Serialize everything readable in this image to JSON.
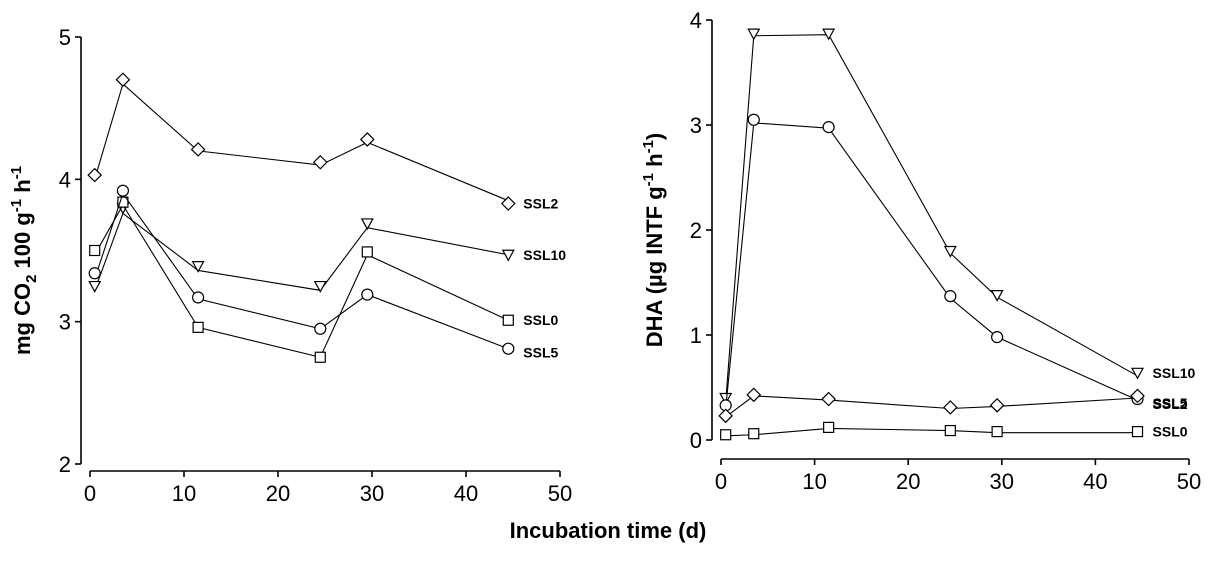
{
  "shared_xlabel": "Incubation time (d)",
  "chart_data": [
    {
      "type": "line",
      "title": "",
      "xlabel": "",
      "ylabel_parts": {
        "pre": "mg CO",
        "sub": "2",
        "mid": " 100 g",
        "sup1": "-1",
        "mid2": " h",
        "sup2": "-1"
      },
      "xlim": [
        0,
        50
      ],
      "ylim": [
        2,
        5
      ],
      "xticks": [
        0,
        10,
        20,
        30,
        40,
        50
      ],
      "yticks": [
        2,
        3,
        4,
        5
      ],
      "grid": false,
      "series": [
        {
          "name": "SSL2",
          "marker": "diamond",
          "x": [
            0.5,
            3.5,
            11.5,
            24.5,
            29.5,
            44.5
          ],
          "line_y": [
            4.0,
            4.67,
            4.2,
            4.1,
            4.26,
            3.85
          ],
          "marker_y": [
            4.03,
            4.7,
            4.21,
            4.12,
            4.28,
            3.83
          ]
        },
        {
          "name": "SSL10",
          "marker": "triangle-down",
          "x": [
            0.5,
            3.5,
            11.5,
            24.5,
            29.5,
            44.5
          ],
          "line_y": [
            3.22,
            3.76,
            3.36,
            3.22,
            3.66,
            3.47
          ],
          "marker_y": [
            3.25,
            3.8,
            3.39,
            3.25,
            3.69,
            3.47
          ]
        },
        {
          "name": "SSL0",
          "marker": "square",
          "x": [
            0.5,
            3.5,
            11.5,
            24.5,
            29.5,
            44.5
          ],
          "line_y": [
            3.47,
            3.82,
            2.96,
            2.75,
            3.47,
            3.01
          ],
          "marker_y": [
            3.5,
            3.84,
            2.96,
            2.75,
            3.49,
            3.01
          ]
        },
        {
          "name": "SSL5",
          "marker": "circle",
          "x": [
            0.5,
            3.5,
            11.5,
            24.5,
            29.5,
            44.5
          ],
          "line_y": [
            3.3,
            3.9,
            3.16,
            2.95,
            3.19,
            2.81
          ],
          "marker_y": [
            3.34,
            3.92,
            3.17,
            2.95,
            3.19,
            2.81
          ]
        }
      ]
    },
    {
      "type": "line",
      "title": "",
      "xlabel": "",
      "ylabel_parts": {
        "pre": "DHA (µg INTF g",
        "sup1": "-1",
        "mid": " h",
        "sup2": "-1",
        "post": ")"
      },
      "xlim": [
        0,
        50
      ],
      "ylim": [
        0,
        4
      ],
      "xticks": [
        0,
        10,
        20,
        30,
        40,
        50
      ],
      "yticks": [
        0,
        1,
        2,
        3,
        4
      ],
      "grid": false,
      "series": [
        {
          "name": "SSL10",
          "marker": "triangle-down",
          "x": [
            0.5,
            3.5,
            11.5,
            24.5,
            29.5,
            44.5
          ],
          "line_y": [
            0.36,
            3.85,
            3.86,
            1.78,
            1.36,
            0.61
          ],
          "marker_y": [
            0.4,
            3.87,
            3.87,
            1.8,
            1.38,
            0.64
          ]
        },
        {
          "name": "SSL5",
          "marker": "circle",
          "x": [
            0.5,
            3.5,
            11.5,
            24.5,
            29.5,
            44.5
          ],
          "line_y": [
            0.3,
            3.02,
            2.97,
            1.35,
            0.98,
            0.38
          ],
          "marker_y": [
            0.33,
            3.05,
            2.98,
            1.37,
            0.98,
            0.39
          ]
        },
        {
          "name": "SSL2",
          "marker": "diamond",
          "x": [
            0.5,
            3.5,
            11.5,
            24.5,
            29.5,
            44.5
          ],
          "line_y": [
            0.22,
            0.42,
            0.38,
            0.3,
            0.32,
            0.4
          ],
          "marker_y": [
            0.23,
            0.43,
            0.39,
            0.31,
            0.33,
            0.42
          ]
        },
        {
          "name": "SSL0",
          "marker": "square",
          "x": [
            0.5,
            3.5,
            11.5,
            24.5,
            29.5,
            44.5
          ],
          "line_y": [
            0.04,
            0.05,
            0.11,
            0.09,
            0.07,
            0.07
          ],
          "marker_y": [
            0.05,
            0.06,
            0.12,
            0.09,
            0.08,
            0.08
          ]
        }
      ]
    }
  ]
}
